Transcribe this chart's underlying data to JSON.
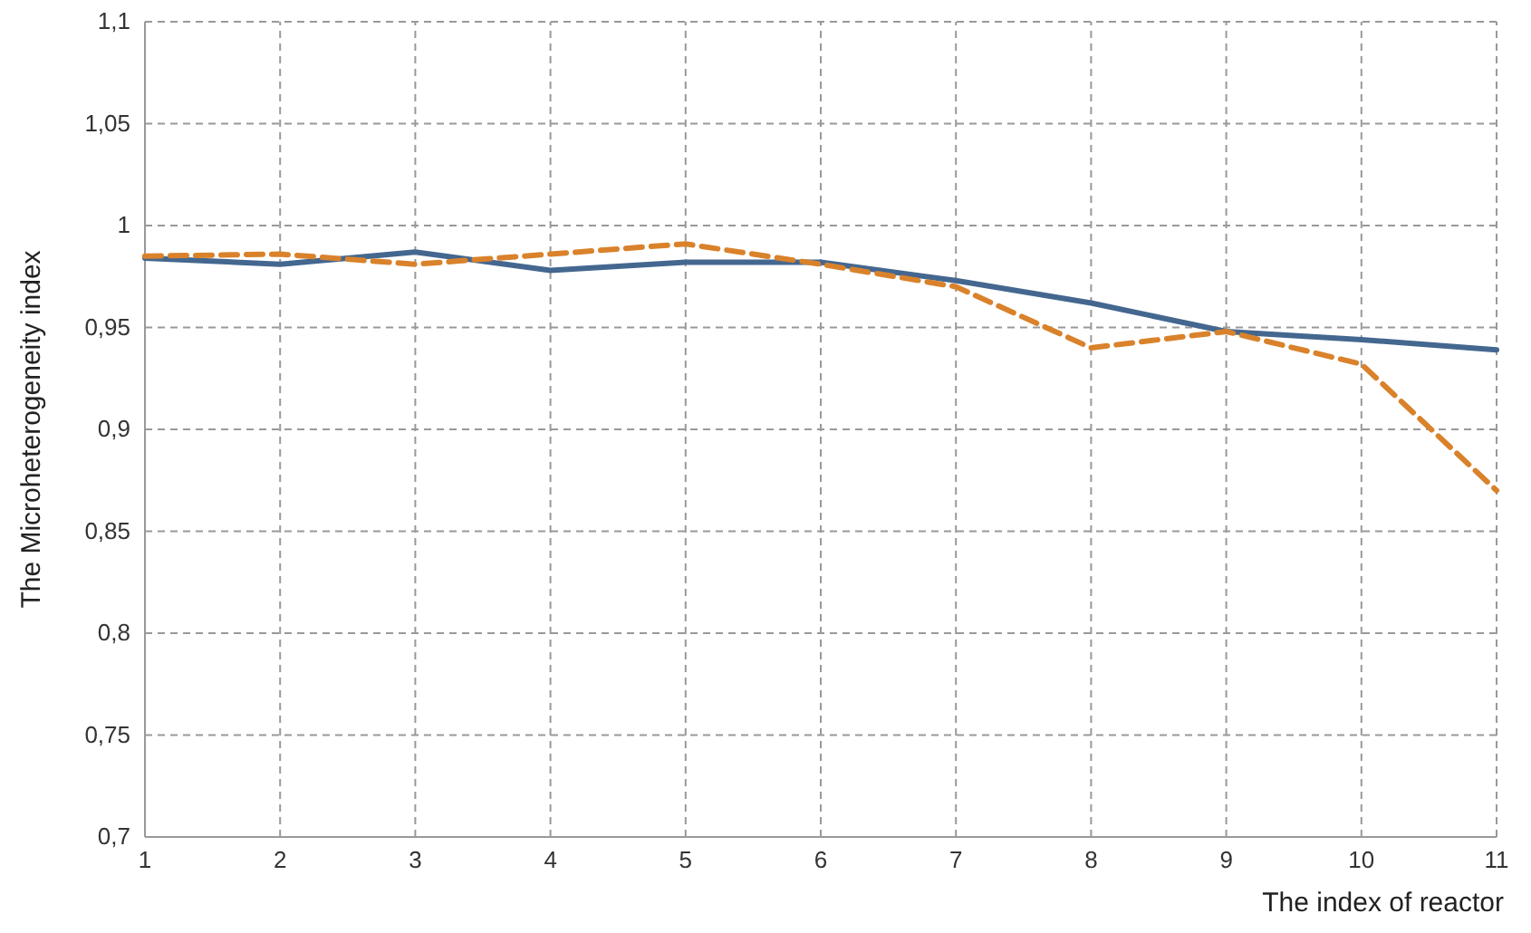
{
  "chart_data": {
    "type": "line",
    "xlabel": "The index of reactor",
    "ylabel": "The Microheterogeneity index",
    "x": [
      1,
      2,
      3,
      4,
      5,
      6,
      7,
      8,
      9,
      10,
      11
    ],
    "series": [
      {
        "color": "#44678f",
        "line_style": "solid",
        "values": [
          0.984,
          0.981,
          0.987,
          0.978,
          0.982,
          0.982,
          0.973,
          0.962,
          0.948,
          0.944,
          0.939
        ]
      },
      {
        "color": "#d9822b",
        "line_style": "dashed",
        "values": [
          0.985,
          0.986,
          0.981,
          0.986,
          0.991,
          0.981,
          0.97,
          0.94,
          0.948,
          0.932,
          0.87
        ]
      }
    ],
    "xlim": [
      1,
      11
    ],
    "xticks": [
      1,
      2,
      3,
      4,
      5,
      6,
      7,
      8,
      9,
      10,
      11
    ],
    "ylim": [
      0.7,
      1.1
    ],
    "yticks": [
      {
        "value": 0.7,
        "label": "0,7"
      },
      {
        "value": 0.75,
        "label": "0,75"
      },
      {
        "value": 0.8,
        "label": "0,8"
      },
      {
        "value": 0.85,
        "label": "0,85"
      },
      {
        "value": 0.9,
        "label": "0,9"
      },
      {
        "value": 0.95,
        "label": "0,95"
      },
      1,
      {
        "value": 1.05,
        "label": "1,05"
      },
      {
        "value": 1.1,
        "label": "1,1"
      }
    ],
    "grid": true,
    "marker": "none"
  }
}
